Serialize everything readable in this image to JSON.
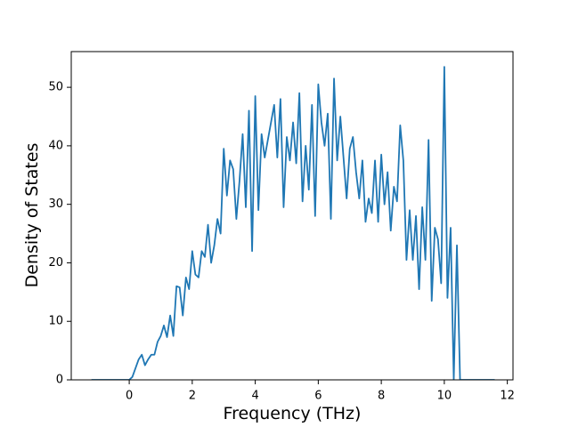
{
  "chart_data": {
    "type": "line",
    "x_label": "Frequency (THz)",
    "y_label": "Density of States",
    "x": [
      -1.2,
      -1.1,
      -1.0,
      -0.9,
      -0.8,
      -0.7,
      -0.6,
      -0.5,
      -0.4,
      -0.3,
      -0.2,
      -0.1,
      0.0,
      0.1,
      0.2,
      0.3,
      0.4,
      0.5,
      0.6,
      0.7,
      0.8,
      0.9,
      1.0,
      1.1,
      1.2,
      1.3,
      1.4,
      1.5,
      1.6,
      1.7,
      1.8,
      1.9,
      2.0,
      2.1,
      2.2,
      2.3,
      2.4,
      2.5,
      2.6,
      2.7,
      2.8,
      2.9,
      3.0,
      3.1,
      3.2,
      3.3,
      3.4,
      3.5,
      3.6,
      3.7,
      3.8,
      3.9,
      4.0,
      4.1,
      4.2,
      4.3,
      4.4,
      4.5,
      4.6,
      4.7,
      4.8,
      4.9,
      5.0,
      5.1,
      5.2,
      5.3,
      5.4,
      5.5,
      5.6,
      5.7,
      5.8,
      5.9,
      6.0,
      6.1,
      6.2,
      6.3,
      6.4,
      6.5,
      6.6,
      6.7,
      6.8,
      6.9,
      7.0,
      7.1,
      7.2,
      7.3,
      7.4,
      7.5,
      7.6,
      7.7,
      7.8,
      7.9,
      8.0,
      8.1,
      8.2,
      8.3,
      8.4,
      8.5,
      8.6,
      8.7,
      8.8,
      8.9,
      9.0,
      9.1,
      9.2,
      9.3,
      9.4,
      9.5,
      9.6,
      9.7,
      9.8,
      9.9,
      10.0,
      10.1,
      10.2,
      10.3,
      10.4,
      10.5,
      10.6,
      10.7,
      10.8,
      10.9,
      11.0,
      11.1,
      11.2,
      11.3,
      11.4,
      11.5,
      11.6
    ],
    "series": [
      {
        "color": "#1f77b4",
        "values": [
          0,
          0,
          0,
          0,
          0,
          0,
          0,
          0,
          0,
          0,
          0,
          0,
          0,
          0.5,
          2,
          3.5,
          4.3,
          2.5,
          3.5,
          4.3,
          4.3,
          6.5,
          7.5,
          9.3,
          7.3,
          11,
          7.5,
          16,
          15.8,
          11,
          17.5,
          15.5,
          22,
          18,
          17.5,
          22,
          21,
          26.5,
          20,
          23,
          27.5,
          25,
          39.5,
          31.5,
          37.5,
          36,
          27.5,
          34,
          42,
          29.5,
          46,
          22,
          48.5,
          29,
          42,
          38,
          41,
          44,
          47,
          38,
          48,
          29.5,
          41.5,
          37.5,
          44,
          37,
          49,
          30.5,
          40,
          32.5,
          47,
          28,
          50.5,
          44,
          40,
          45.5,
          27.5,
          51.5,
          37.5,
          45,
          38,
          31,
          39.5,
          41.5,
          35.5,
          31,
          37.5,
          27,
          31,
          28.5,
          37.5,
          27,
          38.5,
          30,
          35.5,
          25.5,
          33,
          30.5,
          43.5,
          37.5,
          20.5,
          29,
          20.5,
          28,
          15.5,
          29.5,
          20.5,
          41,
          13.5,
          26,
          24,
          16.5,
          53.5,
          14,
          26,
          0,
          23,
          0,
          0,
          0,
          0,
          0,
          0,
          0,
          0,
          0,
          0,
          0,
          0
        ]
      }
    ],
    "xlim": [
      -1.84,
      12.18
    ],
    "ylim": [
      0,
      56.1
    ],
    "xticks": [
      0,
      2,
      4,
      6,
      8,
      10,
      12
    ],
    "yticks": [
      0,
      10,
      20,
      30,
      40,
      50
    ],
    "grid": false
  }
}
